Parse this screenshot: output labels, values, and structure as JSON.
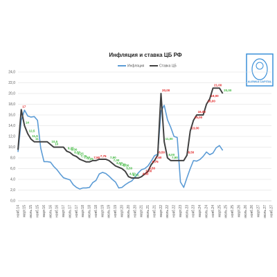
{
  "chart_data": {
    "type": "line",
    "title": "Инфляция и ставка ЦБ РФ",
    "logo": "ALENKA CAPITAL",
    "categories": [
      "нояб.14",
      null,
      "март.15",
      null,
      "июль.15",
      null,
      "нояб.15",
      null,
      "март.16",
      null,
      "июль.16",
      null,
      "нояб.16",
      null,
      "март.17",
      null,
      "июль.17",
      null,
      "нояб.17",
      null,
      "март.18",
      null,
      "июль.18",
      null,
      "нояб.18",
      null,
      "март.19",
      null,
      "июль.19",
      null,
      "нояб.19",
      null,
      "март.20",
      null,
      "июль.20",
      null,
      "нояб.20",
      null,
      "март.21",
      null,
      "июль.21",
      null,
      "нояб.21",
      null,
      "март.22",
      null,
      "июль.22",
      null,
      "нояб.22",
      null,
      "март.23",
      null,
      "июль.23",
      null,
      "нояб.23",
      null,
      "март.24",
      null,
      "июль.24",
      null,
      "нояб.24",
      null,
      "март.25",
      null,
      "июль.25",
      null,
      "нояб.25",
      null,
      "март.26",
      null,
      "июль.26",
      null,
      "нояб.26",
      null,
      "март.27",
      null,
      "июль.27",
      null,
      "нояб.27"
    ],
    "series": [
      {
        "name": "Инфляция",
        "color": "#5b9bd5",
        "width": 1.6,
        "values": [
          9.1,
          15.0,
          16.9,
          15.8,
          15.6,
          15.7,
          15.0,
          9.8,
          7.3,
          7.3,
          7.2,
          6.4,
          5.8,
          5.0,
          4.3,
          4.1,
          3.9,
          3.0,
          2.5,
          2.2,
          2.4,
          2.4,
          2.5,
          3.4,
          3.8,
          5.0,
          5.3,
          5.1,
          4.6,
          4.0,
          3.5,
          2.4,
          2.5,
          3.0,
          3.4,
          3.7,
          4.4,
          5.2,
          5.8,
          6.0,
          6.5,
          7.4,
          8.4,
          8.7,
          16.7,
          17.8,
          15.1,
          13.7,
          12.0,
          11.8,
          3.5,
          2.5,
          4.3,
          6.0,
          7.5,
          7.4,
          7.7,
          8.3,
          9.1,
          8.6,
          8.9,
          9.9,
          10.3,
          9.4,
          null,
          null,
          null,
          null,
          null,
          null,
          null,
          null,
          null,
          null,
          null,
          null,
          null,
          null,
          null
        ]
      },
      {
        "name": "Ставка ЦБ",
        "color": "#404040",
        "width": 2,
        "values": [
          9.5,
          17,
          14,
          12.5,
          11.5,
          11,
          11,
          11,
          11,
          11,
          10.5,
          10,
          10,
          10,
          10,
          9.25,
          9,
          8.5,
          8.25,
          7.75,
          7.5,
          7.25,
          7.25,
          7.5,
          7.5,
          7.75,
          7.75,
          7.75,
          7.5,
          7,
          6.5,
          6.25,
          6,
          5.5,
          4.5,
          4.25,
          4.25,
          4.25,
          4.5,
          5,
          5.5,
          6.75,
          7.5,
          8.5,
          20,
          11,
          8,
          7.5,
          7.5,
          7.5,
          7.5,
          7.5,
          8.5,
          13,
          15,
          16,
          16,
          16,
          18,
          19,
          21,
          21,
          21,
          20,
          null,
          null,
          null,
          null,
          null,
          null,
          null,
          null,
          null,
          null,
          null,
          null,
          null,
          null,
          null
        ],
        "value_labels": [
          null,
          "17",
          "14",
          "12,5",
          "11,5",
          "11",
          null,
          null,
          null,
          null,
          "10,5",
          "10",
          null,
          null,
          null,
          "9,25",
          "9,00",
          "8,50",
          "8,25",
          "7,75",
          "7,50",
          "7,25",
          null,
          "7,50",
          null,
          "7,75",
          null,
          null,
          "7,50",
          "7,00",
          "6,50",
          "6,25",
          "6,00",
          "5,50",
          "4,50",
          "4,25",
          null,
          null,
          "4,50",
          "5,00",
          "5,50",
          "6,75",
          "7,50",
          "8,50",
          "20,00",
          "11,00",
          "8,00",
          "7,50",
          null,
          null,
          null,
          null,
          "8,50",
          "13,00",
          "15,00",
          "16,00",
          null,
          null,
          "18,00",
          "19,00",
          "21,00",
          null,
          null,
          "20,00",
          null,
          null,
          null,
          null,
          null,
          null,
          null,
          null,
          null,
          null,
          null,
          null,
          null,
          null,
          null
        ]
      }
    ],
    "up_color": "#e02020",
    "down_color": "#3cb83c",
    "ylim": [
      0,
      24
    ],
    "yticks": [
      {
        "value": 0,
        "label": "0,0"
      },
      {
        "value": 2,
        "label": "2,0"
      },
      {
        "value": 4,
        "label": "4,0"
      },
      {
        "value": 6,
        "label": "6,0"
      },
      {
        "value": 8,
        "label": "8,0"
      },
      {
        "value": 10,
        "label": "10,0"
      },
      {
        "value": 12,
        "label": "12,0"
      },
      {
        "value": 14,
        "label": "14,0"
      },
      {
        "value": 16,
        "label": "16,0"
      },
      {
        "value": 18,
        "label": "18,0"
      },
      {
        "value": 20,
        "label": "20,0"
      },
      {
        "value": 22,
        "label": "22,0"
      },
      {
        "value": 24,
        "label": "24,0"
      }
    ],
    "grid": true
  }
}
